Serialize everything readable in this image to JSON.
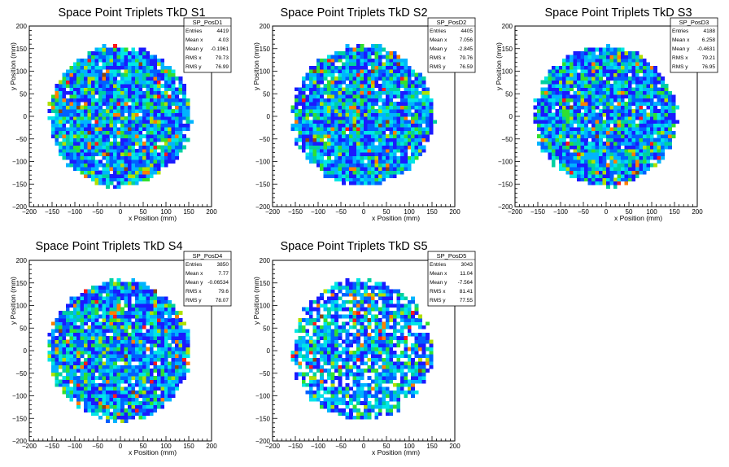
{
  "chart_data": [
    {
      "type": "heatmap",
      "title": "Space Point Triplets TkD S1",
      "xlabel": "x Position (mm)",
      "ylabel": "y Position (mm)",
      "xlim": [
        -200,
        200
      ],
      "ylim": [
        -200,
        200
      ],
      "x_ticks": [
        "−200",
        "−150",
        "−100",
        "−50",
        "0",
        "50",
        "100",
        "150",
        "200"
      ],
      "y_ticks": [
        "−200",
        "−150",
        "−100",
        "−50",
        "0",
        "50",
        "100",
        "150",
        "200"
      ],
      "stats": {
        "name": "SP_PosD1",
        "rows": [
          [
            "Entries",
            "4419"
          ],
          [
            "Mean x",
            "4.03"
          ],
          [
            "Mean y",
            "-0.1961"
          ],
          [
            "RMS x",
            "79.73"
          ],
          [
            "RMS y",
            "76.99"
          ]
        ]
      },
      "distribution": {
        "radius_mm": 160,
        "mean_x": 4.03,
        "mean_y": -0.1961,
        "entries": 4419,
        "seed": 11
      }
    },
    {
      "type": "heatmap",
      "title": "Space Point Triplets TkD S2",
      "xlabel": "x Position (mm)",
      "ylabel": "y Position (mm)",
      "xlim": [
        -200,
        200
      ],
      "ylim": [
        -200,
        200
      ],
      "x_ticks": [
        "−200",
        "−150",
        "−100",
        "−50",
        "0",
        "50",
        "100",
        "150",
        "200"
      ],
      "y_ticks": [
        "−200",
        "−150",
        "−100",
        "−50",
        "0",
        "50",
        "100",
        "150",
        "200"
      ],
      "stats": {
        "name": "SP_PosD2",
        "rows": [
          [
            "Entries",
            "4405"
          ],
          [
            "Mean x",
            "7.056"
          ],
          [
            "Mean y",
            "-2.845"
          ],
          [
            "RMS x",
            "79.76"
          ],
          [
            "RMS y",
            "76.59"
          ]
        ]
      },
      "distribution": {
        "radius_mm": 160,
        "mean_x": 7.056,
        "mean_y": -2.845,
        "entries": 4405,
        "seed": 23
      }
    },
    {
      "type": "heatmap",
      "title": "Space Point Triplets TkD S3",
      "xlabel": "x Position (mm)",
      "ylabel": "y Position (mm)",
      "xlim": [
        -200,
        200
      ],
      "ylim": [
        -200,
        200
      ],
      "x_ticks": [
        "−200",
        "−150",
        "−100",
        "−50",
        "0",
        "50",
        "100",
        "150",
        "200"
      ],
      "y_ticks": [
        "−200",
        "−150",
        "−100",
        "−50",
        "0",
        "50",
        "100",
        "150",
        "200"
      ],
      "stats": {
        "name": "SP_PosD3",
        "rows": [
          [
            "Entries",
            "4188"
          ],
          [
            "Mean x",
            "6.258"
          ],
          [
            "Mean y",
            "-0.4631"
          ],
          [
            "RMS x",
            "79.21"
          ],
          [
            "RMS y",
            "76.95"
          ]
        ]
      },
      "distribution": {
        "radius_mm": 160,
        "mean_x": 6.258,
        "mean_y": -0.4631,
        "entries": 4188,
        "seed": 37
      }
    },
    {
      "type": "heatmap",
      "title": "Space Point Triplets TkD S4",
      "xlabel": "x Position (mm)",
      "ylabel": "y Position (mm)",
      "xlim": [
        -200,
        200
      ],
      "ylim": [
        -200,
        200
      ],
      "x_ticks": [
        "−200",
        "−150",
        "−100",
        "−50",
        "0",
        "50",
        "100",
        "150",
        "200"
      ],
      "y_ticks": [
        "−200",
        "−150",
        "−100",
        "−50",
        "0",
        "50",
        "100",
        "150",
        "200"
      ],
      "stats": {
        "name": "SP_PosD4",
        "rows": [
          [
            "Entries",
            "3850"
          ],
          [
            "Mean x",
            "7.77"
          ],
          [
            "Mean y",
            "-0.06534"
          ],
          [
            "RMS x",
            "79.6"
          ],
          [
            "RMS y",
            "78.07"
          ]
        ]
      },
      "distribution": {
        "radius_mm": 160,
        "mean_x": 7.77,
        "mean_y": -0.06534,
        "entries": 3850,
        "seed": 53
      }
    },
    {
      "type": "heatmap",
      "title": "Space Point Triplets TkD S5",
      "xlabel": "x Position (mm)",
      "ylabel": "y Position (mm)",
      "xlim": [
        -200,
        200
      ],
      "ylim": [
        -200,
        200
      ],
      "x_ticks": [
        "−200",
        "−150",
        "−100",
        "−50",
        "0",
        "50",
        "100",
        "150",
        "200"
      ],
      "y_ticks": [
        "−200",
        "−150",
        "−100",
        "−50",
        "0",
        "50",
        "100",
        "150",
        "200"
      ],
      "stats": {
        "name": "SP_PosD5",
        "rows": [
          [
            "Entries",
            "3043"
          ],
          [
            "Mean x",
            "11.04"
          ],
          [
            "Mean y",
            "-7.564"
          ],
          [
            "RMS x",
            "81.41"
          ],
          [
            "RMS y",
            "77.55"
          ]
        ]
      },
      "distribution": {
        "radius_mm": 160,
        "mean_x": 11.04,
        "mean_y": -7.564,
        "entries": 3043,
        "seed": 71
      }
    }
  ],
  "colors": {
    "palette": [
      "#1a1aff",
      "#0060ff",
      "#00b4ff",
      "#00e6e6",
      "#00d0a0",
      "#30e030",
      "#b0e000",
      "#ff8000",
      "#ff1a1a",
      "#8b4513"
    ],
    "axis": "#000000",
    "background": "#ffffff"
  }
}
